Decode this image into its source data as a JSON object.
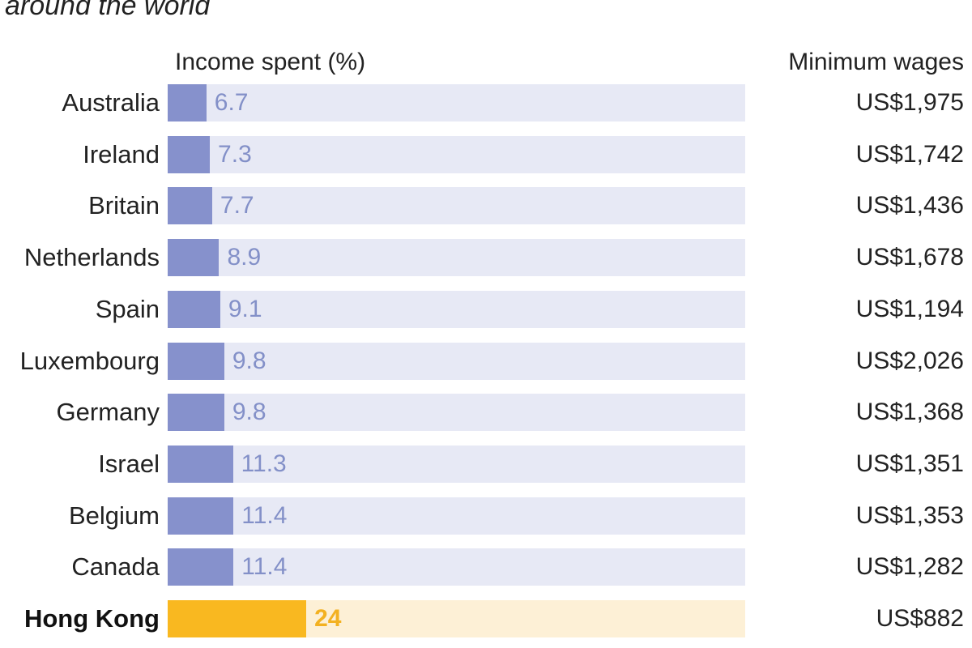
{
  "subtitle": "around the world",
  "chart_data": {
    "type": "bar",
    "orientation": "horizontal",
    "title": "",
    "subtitle": "around the world",
    "bar_header": "Income spent (%)",
    "wage_header": "Minimum wages",
    "categories": [
      "Australia",
      "Ireland",
      "Britain",
      "Netherlands",
      "Spain",
      "Luxembourg",
      "Germany",
      "Israel",
      "Belgium",
      "Canada",
      "Hong Kong"
    ],
    "values": [
      6.7,
      7.3,
      7.7,
      8.9,
      9.1,
      9.8,
      9.8,
      11.3,
      11.4,
      11.4,
      24
    ],
    "value_labels": [
      "6.7",
      "7.3",
      "7.7",
      "8.9",
      "9.1",
      "9.8",
      "9.8",
      "11.3",
      "11.4",
      "11.4",
      "24"
    ],
    "minimum_wages": [
      "US$1,975",
      "US$1,742",
      "US$1,436",
      "US$1,678",
      "US$1,194",
      "US$2,026",
      "US$1,368",
      "US$1,351",
      "US$1,353",
      "US$1,282",
      "US$882"
    ],
    "highlight": "Hong Kong",
    "xlim": [
      0,
      100
    ],
    "grid": false,
    "colors": {
      "bar": "#8691cc",
      "track": "#e7e9f5",
      "value_text": "#8390c8",
      "highlight_bar": "#f9b820",
      "highlight_track": "#fdf0d6",
      "highlight_text": "#f3b121"
    }
  }
}
